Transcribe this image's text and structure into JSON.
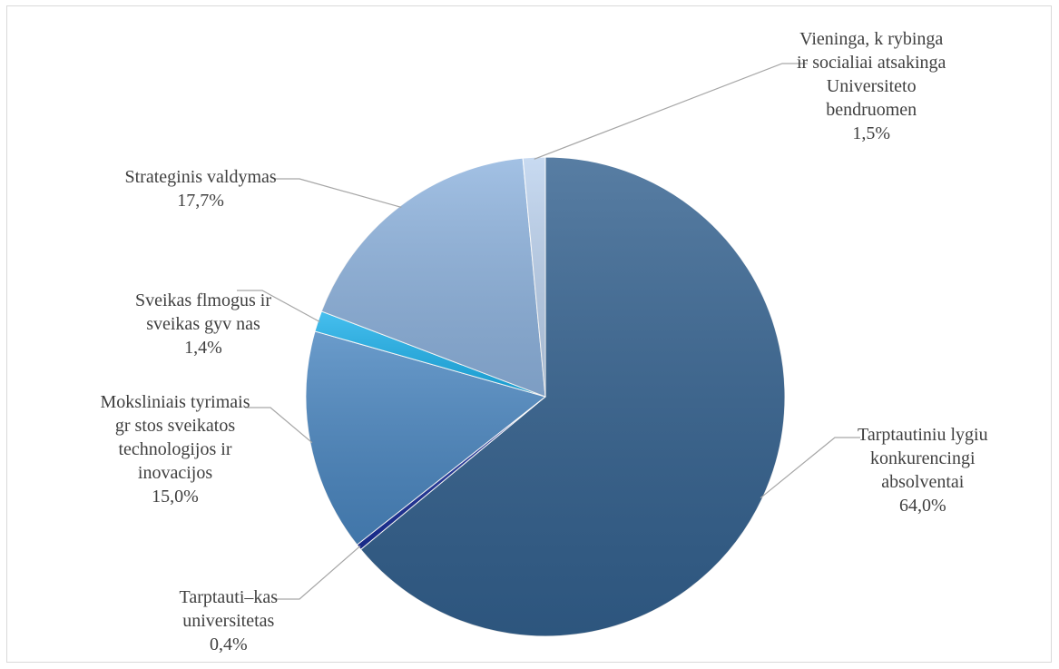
{
  "chart_data": {
    "type": "pie",
    "slices": [
      {
        "label_lines": [
          "Tarptautiniu lygiu",
          "konkurencingi",
          "absolventai"
        ],
        "value_text": "64,0%",
        "value": 64.0,
        "color": "#33618f"
      },
      {
        "label_lines": [
          "Tarptauti–kas",
          "universitetas"
        ],
        "value_text": "0,4%",
        "value": 0.4,
        "color": "#1a2f9a"
      },
      {
        "label_lines": [
          "Moksliniais tyrimais",
          "gr stos sveikatos",
          "technologijos ir",
          "inovacijos"
        ],
        "value_text": "15,0%",
        "value": 15.0,
        "color": "#4a86c0"
      },
      {
        "label_lines": [
          "Sveikas flmogus ir",
          "sveikas gyv  nas"
        ],
        "value_text": "1,4%",
        "value": 1.4,
        "color": "#1fb2ec"
      },
      {
        "label_lines": [
          "Strateginis valdymas"
        ],
        "value_text": "17,7%",
        "value": 17.7,
        "color": "#8eb3de"
      },
      {
        "label_lines": [
          "Vieninga, k  rybinga",
          "ir socialiai atsakinga",
          "Universiteto",
          "bendruomen"
        ],
        "value_text": "1,5%",
        "value": 1.5,
        "color": "#bcd2ee"
      }
    ]
  }
}
